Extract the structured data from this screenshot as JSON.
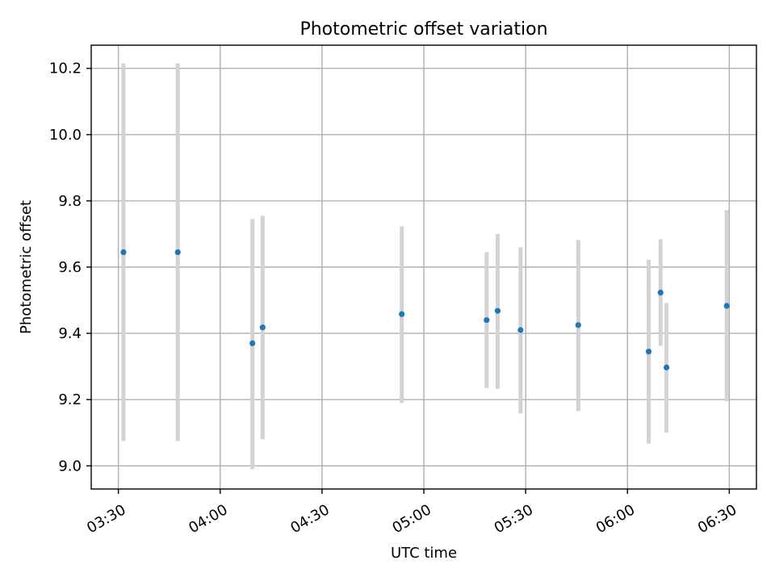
{
  "chart_data": {
    "type": "scatter",
    "title": "Photometric offset variation",
    "xlabel": "UTC time",
    "ylabel": "Photometric offset",
    "xlim": [
      "03:22",
      "06:38"
    ],
    "ylim": [
      8.93,
      10.27
    ],
    "xticks": [
      "03:30",
      "04:00",
      "04:30",
      "05:00",
      "05:30",
      "06:00",
      "06:30"
    ],
    "yticks": [
      9.0,
      9.2,
      9.4,
      9.6,
      9.8,
      10.0,
      10.2
    ],
    "ytick_labels": [
      "9.0",
      "9.2",
      "9.4",
      "9.6",
      "9.8",
      "10.0",
      "10.2"
    ],
    "grid": true,
    "point_color": "#1f77b4",
    "errorbar_color": "#d3d3d3",
    "points": [
      {
        "x": "03:31:30",
        "y": 9.645,
        "err_low": 9.075,
        "err_high": 10.215
      },
      {
        "x": "03:47:30",
        "y": 9.645,
        "err_low": 9.075,
        "err_high": 10.215
      },
      {
        "x": "04:09:30",
        "y": 9.37,
        "err_low": 8.99,
        "err_high": 9.745
      },
      {
        "x": "04:12:30",
        "y": 9.418,
        "err_low": 9.08,
        "err_high": 9.755
      },
      {
        "x": "04:53:30",
        "y": 9.458,
        "err_low": 9.19,
        "err_high": 9.723
      },
      {
        "x": "05:18:30",
        "y": 9.44,
        "err_low": 9.235,
        "err_high": 9.645
      },
      {
        "x": "05:21:45",
        "y": 9.468,
        "err_low": 9.232,
        "err_high": 9.7
      },
      {
        "x": "05:28:30",
        "y": 9.41,
        "err_low": 9.158,
        "err_high": 9.66
      },
      {
        "x": "05:45:30",
        "y": 9.425,
        "err_low": 9.165,
        "err_high": 9.682
      },
      {
        "x": "06:06:15",
        "y": 9.345,
        "err_low": 9.067,
        "err_high": 9.622
      },
      {
        "x": "06:09:45",
        "y": 9.523,
        "err_low": 9.362,
        "err_high": 9.684
      },
      {
        "x": "06:11:30",
        "y": 9.297,
        "err_low": 9.1,
        "err_high": 9.492
      },
      {
        "x": "06:29:15",
        "y": 9.483,
        "err_low": 9.195,
        "err_high": 9.772
      }
    ]
  }
}
